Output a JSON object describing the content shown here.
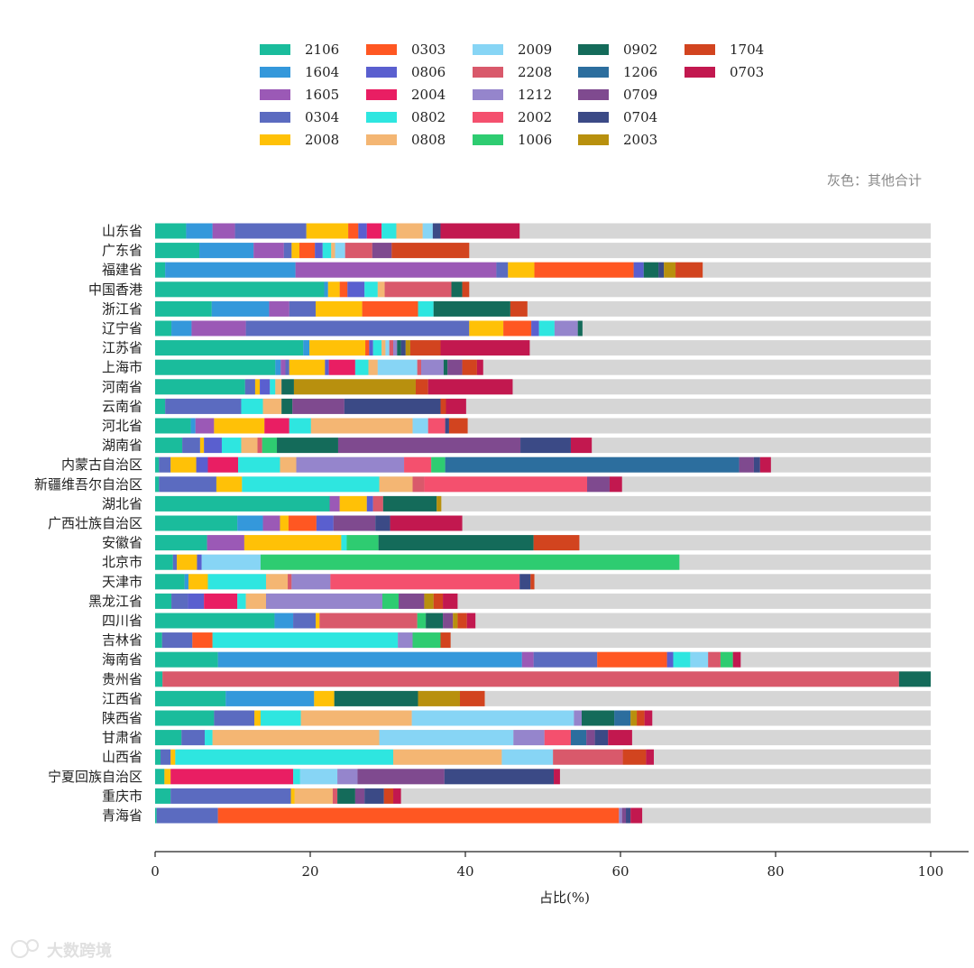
{
  "chart_data": {
    "type": "bar",
    "orientation": "horizontal",
    "stacked": true,
    "xlabel": "占比(%)",
    "xlim": [
      0,
      100
    ],
    "xticks": [
      0,
      20,
      40,
      60,
      80,
      100
    ],
    "note": "灰色：其他合计",
    "other_color": "#d6d6d6",
    "watermark": "大数跨境",
    "legend_position": "top",
    "categories": [
      "山东省",
      "广东省",
      "福建省",
      "中国香港",
      "浙江省",
      "辽宁省",
      "江苏省",
      "上海市",
      "河南省",
      "云南省",
      "河北省",
      "湖南省",
      "内蒙古自治区",
      "新疆维吾尔自治区",
      "湖北省",
      "广西壮族自治区",
      "安徽省",
      "北京市",
      "天津市",
      "黑龙江省",
      "四川省",
      "吉林省",
      "海南省",
      "贵州省",
      "江西省",
      "陕西省",
      "甘肃省",
      "山西省",
      "宁夏回族自治区",
      "重庆市",
      "青海省"
    ],
    "series": [
      {
        "name": "2106",
        "color": "#1abc9c",
        "values": [
          4,
          5.7,
          1.3,
          21.8,
          7.3,
          2.1,
          19.1,
          15.5,
          11.6,
          1.3,
          4.6,
          3.5,
          0.5,
          0.5,
          22.5,
          10.6,
          6.7,
          2.3,
          3.8,
          2.1,
          15.4,
          0.9,
          8.1,
          1,
          9.1,
          7.6,
          3.4,
          0.7,
          1.2,
          2,
          0.2
        ]
      },
      {
        "name": "1604",
        "color": "#3498db",
        "values": [
          3.4,
          7,
          16.8,
          0.5,
          7.4,
          2.6,
          0.8,
          0.7,
          0,
          0,
          0.6,
          0,
          0,
          0,
          0,
          3.3,
          0,
          0,
          0.5,
          0,
          2.4,
          0,
          39.2,
          0,
          11.4,
          0,
          0,
          0,
          0,
          0,
          0
        ]
      },
      {
        "name": "1605",
        "color": "#9b59b6",
        "values": [
          2.9,
          3.9,
          25.9,
          0,
          2.6,
          7,
          0,
          0.6,
          0,
          0,
          2.4,
          0,
          0,
          0,
          1.3,
          2.2,
          4.8,
          0,
          0,
          0,
          0,
          0,
          1.5,
          0,
          0,
          0,
          0,
          0,
          0,
          0,
          0
        ]
      },
      {
        "name": "0304",
        "color": "#5b6bc0",
        "values": [
          9.2,
          1,
          1.5,
          0,
          3.4,
          28.8,
          0,
          0.5,
          1.3,
          9.8,
          0,
          2.3,
          1.5,
          7.4,
          0,
          0,
          0,
          0.5,
          0,
          2.1,
          2.9,
          3.9,
          8.2,
          0,
          0,
          5.2,
          3,
          1.3,
          0,
          15.5,
          7.9
        ]
      },
      {
        "name": "2008",
        "color": "#ffc107",
        "values": [
          5.4,
          1,
          3.4,
          1.5,
          6,
          4.4,
          7.2,
          4.6,
          0.6,
          0,
          6.5,
          0.5,
          3.3,
          3.3,
          3.5,
          1.1,
          12.5,
          2.6,
          2.5,
          0,
          0.5,
          0,
          0,
          0,
          2.6,
          0.8,
          0,
          0.6,
          0.8,
          0.5,
          0
        ]
      },
      {
        "name": "0303",
        "color": "#ff5722",
        "values": [
          1.3,
          2,
          12.8,
          1,
          7.2,
          3.6,
          0.5,
          0,
          0,
          0,
          0,
          0,
          0,
          0,
          0,
          3.6,
          0,
          0,
          0,
          0,
          0,
          2.6,
          9,
          0,
          0,
          0,
          0,
          0,
          0,
          0,
          51.7
        ]
      },
      {
        "name": "0806",
        "color": "#5a5fcf",
        "values": [
          1.1,
          1,
          1.3,
          2.2,
          0,
          1,
          0.5,
          0.5,
          1.3,
          0,
          0,
          2.3,
          1.5,
          0,
          0.8,
          2.2,
          0,
          0.6,
          0,
          2.1,
          0,
          0,
          0.8,
          0,
          0,
          0,
          0,
          0,
          0,
          0,
          0
        ]
      },
      {
        "name": "2004",
        "color": "#e91e63",
        "values": [
          1.9,
          0,
          0,
          0,
          0,
          0,
          0,
          3.4,
          0,
          0,
          3.2,
          0,
          3.9,
          0,
          0,
          0,
          0,
          0,
          0,
          4.3,
          0,
          0,
          0,
          0,
          0,
          0,
          0,
          0,
          15.8,
          0,
          0
        ]
      },
      {
        "name": "0802",
        "color": "#2ee6e0",
        "values": [
          1.9,
          1.1,
          0,
          1.7,
          2,
          2,
          1.1,
          1.7,
          0.7,
          2.8,
          2.8,
          2.5,
          5.4,
          17.7,
          0,
          0,
          0.7,
          0,
          7.5,
          1.1,
          0,
          23.9,
          2.2,
          0,
          0,
          5.2,
          1,
          28.1,
          0.9,
          0,
          0
        ]
      },
      {
        "name": "0808",
        "color": "#f4b673",
        "values": [
          3.4,
          0.5,
          0,
          0.9,
          0,
          0,
          0.5,
          1.2,
          0.8,
          2.4,
          13.1,
          2.1,
          2.1,
          4.3,
          0,
          0,
          0,
          0,
          2.8,
          2.6,
          0,
          0,
          0,
          0,
          0,
          14.3,
          21.5,
          14,
          0,
          4.9,
          0
        ]
      },
      {
        "name": "2009",
        "color": "#87d5f5",
        "values": [
          1.3,
          1.3,
          0,
          0,
          0,
          0,
          0.5,
          5.1,
          0,
          0,
          2,
          0,
          0,
          0,
          0,
          0,
          0,
          7.6,
          0,
          0,
          0,
          0,
          2.3,
          0,
          0,
          20.9,
          17.3,
          6.6,
          4.8,
          0,
          0
        ]
      },
      {
        "name": "2208",
        "color": "#d9596b",
        "values": [
          0,
          3.5,
          0,
          8.6,
          0,
          0,
          0.5,
          0.5,
          0,
          0,
          0,
          0.6,
          0,
          1.5,
          1.3,
          0,
          0,
          0,
          0.5,
          0,
          12.6,
          0,
          1.6,
          99.9,
          0,
          0,
          0,
          9,
          0,
          0.6,
          0
        ]
      },
      {
        "name": "1212",
        "color": "#9585cc",
        "values": [
          0,
          0,
          0,
          0,
          0,
          3,
          0.5,
          2.9,
          0,
          0,
          0,
          0,
          13.9,
          0,
          0,
          0,
          0,
          0,
          5,
          15,
          0,
          1.9,
          0,
          0,
          0,
          1,
          4,
          0,
          2.6,
          0,
          0.4
        ]
      },
      {
        "name": "2002",
        "color": "#f4506e",
        "values": [
          0,
          0,
          0,
          0,
          0,
          0,
          0,
          0,
          0,
          0,
          2.2,
          0,
          3.5,
          21,
          0,
          0,
          0,
          0,
          24.4,
          0,
          0,
          0,
          0,
          0,
          0,
          0,
          3.4,
          0,
          0,
          0,
          0
        ]
      },
      {
        "name": "1006",
        "color": "#2ecc71",
        "values": [
          0,
          0,
          0,
          0,
          0,
          0,
          0,
          0,
          0,
          0,
          0,
          1.9,
          1.8,
          0,
          0,
          0,
          4.1,
          54,
          0,
          2.1,
          1.1,
          3.6,
          1.6,
          0,
          0,
          0,
          0,
          0,
          0,
          0,
          0
        ]
      },
      {
        "name": "0902",
        "color": "#146b5a",
        "values": [
          0,
          0,
          1.9,
          1.4,
          9.9,
          0.6,
          0.5,
          0.5,
          1.6,
          1.4,
          0,
          7.9,
          0,
          0,
          6.9,
          0,
          20,
          0,
          0,
          0,
          2.2,
          0,
          0,
          4.3,
          10.8,
          4.2,
          0,
          0,
          0,
          2.3,
          0
        ]
      },
      {
        "name": "1206",
        "color": "#2c6e9e",
        "values": [
          0,
          0,
          0,
          0,
          0,
          0,
          0,
          0,
          0,
          0,
          0,
          0,
          37.9,
          0,
          0,
          0,
          0,
          0,
          0,
          0,
          0,
          0,
          0,
          0,
          0,
          2.1,
          2,
          0,
          0,
          0,
          0
        ]
      },
      {
        "name": "0709",
        "color": "#7f4a8f",
        "values": [
          0,
          2.5,
          0,
          0,
          0,
          0,
          0,
          1.9,
          0,
          6.7,
          0,
          23.5,
          1.9,
          2.9,
          0,
          5.4,
          0,
          0,
          0,
          3.3,
          1.3,
          0,
          0,
          0,
          0,
          0,
          1.1,
          0,
          11.2,
          1.2,
          0.5
        ]
      },
      {
        "name": "0704",
        "color": "#3b4a86",
        "values": [
          1,
          0,
          0.7,
          0,
          0,
          0,
          0.6,
          0,
          0,
          12.4,
          0.5,
          6.5,
          0.8,
          0,
          0,
          1.9,
          0,
          0,
          1.4,
          0,
          0,
          0,
          0,
          0,
          0,
          0,
          1.7,
          0,
          14.1,
          2.5,
          0.6
        ]
      },
      {
        "name": "2003",
        "color": "#b8900e",
        "values": [
          0,
          0,
          1.5,
          0,
          0,
          0,
          0.6,
          0,
          15.7,
          0,
          0,
          0,
          0,
          0,
          0.6,
          0,
          0,
          0,
          0,
          1.2,
          0.6,
          0,
          0,
          0,
          5.4,
          0.8,
          0,
          0,
          0,
          0,
          0
        ]
      },
      {
        "name": "1704",
        "color": "#d2441f",
        "values": [
          0,
          10,
          3.5,
          0.9,
          2.2,
          0,
          3.9,
          1.9,
          1.6,
          0.7,
          2.4,
          0,
          0,
          0,
          0,
          0,
          5.9,
          0,
          0.5,
          1.2,
          1.2,
          1.3,
          0,
          0,
          3.2,
          1,
          0,
          3,
          0,
          1.2,
          0
        ]
      },
      {
        "name": "0703",
        "color": "#c2184f",
        "values": [
          10.2,
          0,
          0,
          0,
          0,
          0,
          11.5,
          0.8,
          10.9,
          2.6,
          0,
          2.7,
          1.4,
          1.6,
          0,
          9.3,
          0,
          0,
          0,
          1.9,
          1.1,
          0,
          1,
          0,
          0,
          1,
          3.1,
          1,
          0.8,
          1,
          1.5
        ]
      }
    ]
  }
}
